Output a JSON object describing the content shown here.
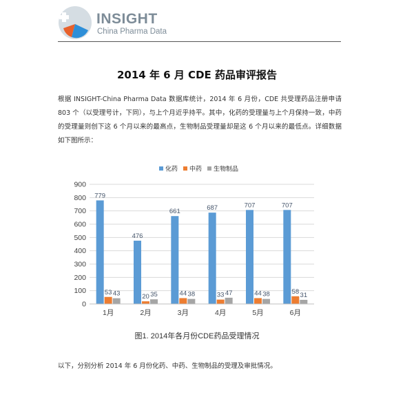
{
  "header": {
    "brand": "INSIGHT",
    "subtitle": "China Pharma Data"
  },
  "doc": {
    "title": "2014 年 6 月 CDE 药品审评报告",
    "intro": "根据  INSIGHT-China Pharma Data  数据库统计，2014 年 6 月份，CDE 共受理药品注册申请 803 个（以受理号计，下同），与上个月近乎持平。其中，化药的受理量与上个月保持一致，中药的受理量则创下这 6 个月以来的最高点，生物制品受理量却是这 6 个月以来的最低点。详细数据如下图所示：",
    "closing": "以下，分别分析 2014 年 6 月份化药、中药、生物制品的受理及审批情况。"
  },
  "chart_data": {
    "type": "bar",
    "caption": "图1.  2014年各月份CDE药品受理情况",
    "categories": [
      "1月",
      "2月",
      "3月",
      "4月",
      "5月",
      "6月"
    ],
    "series": [
      {
        "name": "化药",
        "values": [
          779,
          476,
          661,
          687,
          707,
          707
        ],
        "color": "#5b9bd5"
      },
      {
        "name": "中药",
        "values": [
          53,
          20,
          44,
          33,
          44,
          58
        ],
        "color": "#ed7d31"
      },
      {
        "name": "生物制品",
        "values": [
          43,
          35,
          38,
          47,
          38,
          31
        ],
        "color": "#a5a5a5"
      }
    ],
    "yticks": [
      0,
      100,
      200,
      300,
      400,
      500,
      600,
      700,
      800,
      900
    ],
    "ylim": [
      0,
      900
    ],
    "legend": "top",
    "grid": true,
    "label_color": "#44546a"
  }
}
